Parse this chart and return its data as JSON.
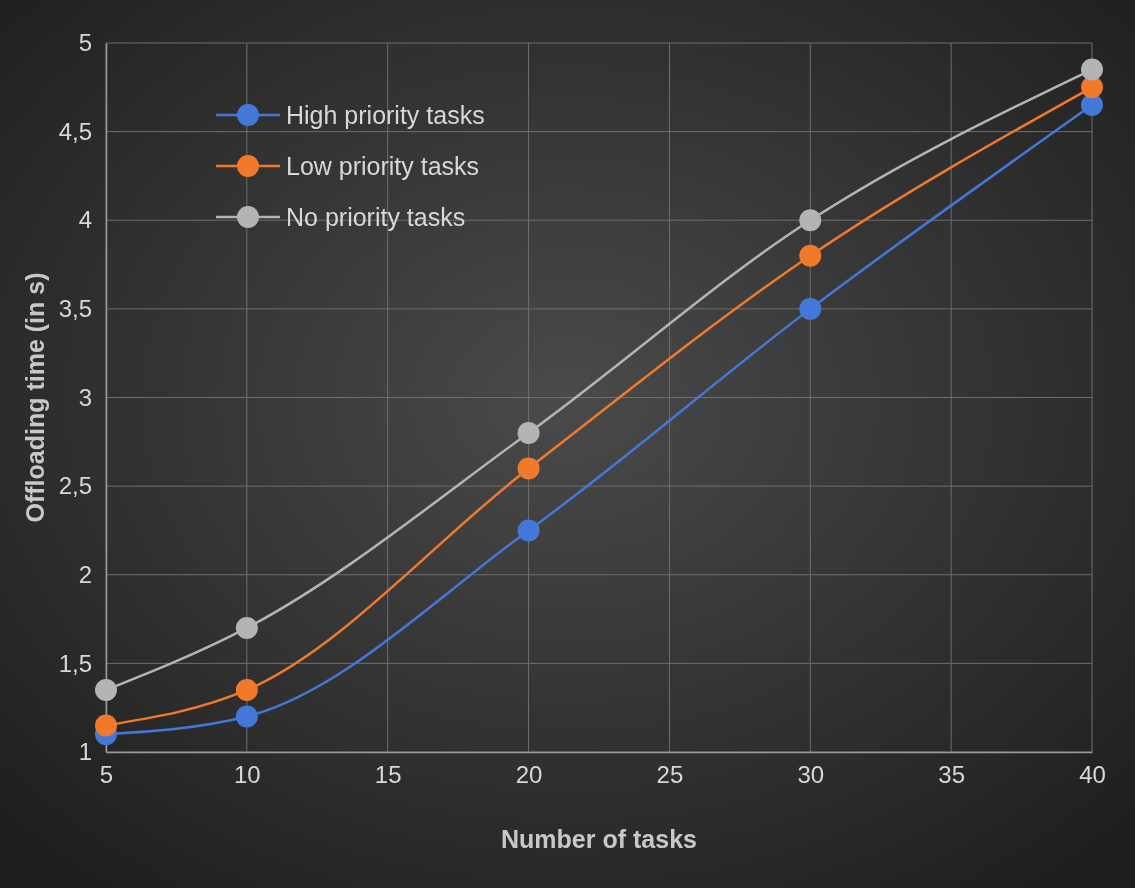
{
  "chart_data": {
    "type": "line",
    "xlabel": "Number of tasks",
    "ylabel": "Offloading time (in s)",
    "x": [
      5,
      10,
      20,
      30,
      40
    ],
    "series": [
      {
        "name": "High priority tasks",
        "color": "#4478d8",
        "values": [
          1.1,
          1.2,
          2.25,
          3.5,
          4.65
        ]
      },
      {
        "name": "Low priority tasks",
        "color": "#f07a2a",
        "values": [
          1.15,
          1.35,
          2.6,
          3.8,
          4.75
        ]
      },
      {
        "name": "No priority tasks",
        "color": "#b4b4b4",
        "values": [
          1.35,
          1.7,
          2.8,
          4.0,
          4.85
        ]
      }
    ],
    "xlim": [
      5,
      40
    ],
    "xticks": [
      5,
      10,
      15,
      20,
      25,
      30,
      35,
      40
    ],
    "ylim": [
      1,
      5
    ],
    "yticks": [
      1,
      {
        "value": 1.5,
        "label": "1,5"
      },
      2,
      {
        "value": 2.5,
        "label": "2,5"
      },
      3,
      {
        "value": 3.5,
        "label": "3,5"
      },
      4,
      {
        "value": 4.5,
        "label": "4,5"
      },
      5
    ],
    "grid": true,
    "legend": "top left",
    "marker": "circle",
    "line_style": "solid"
  }
}
